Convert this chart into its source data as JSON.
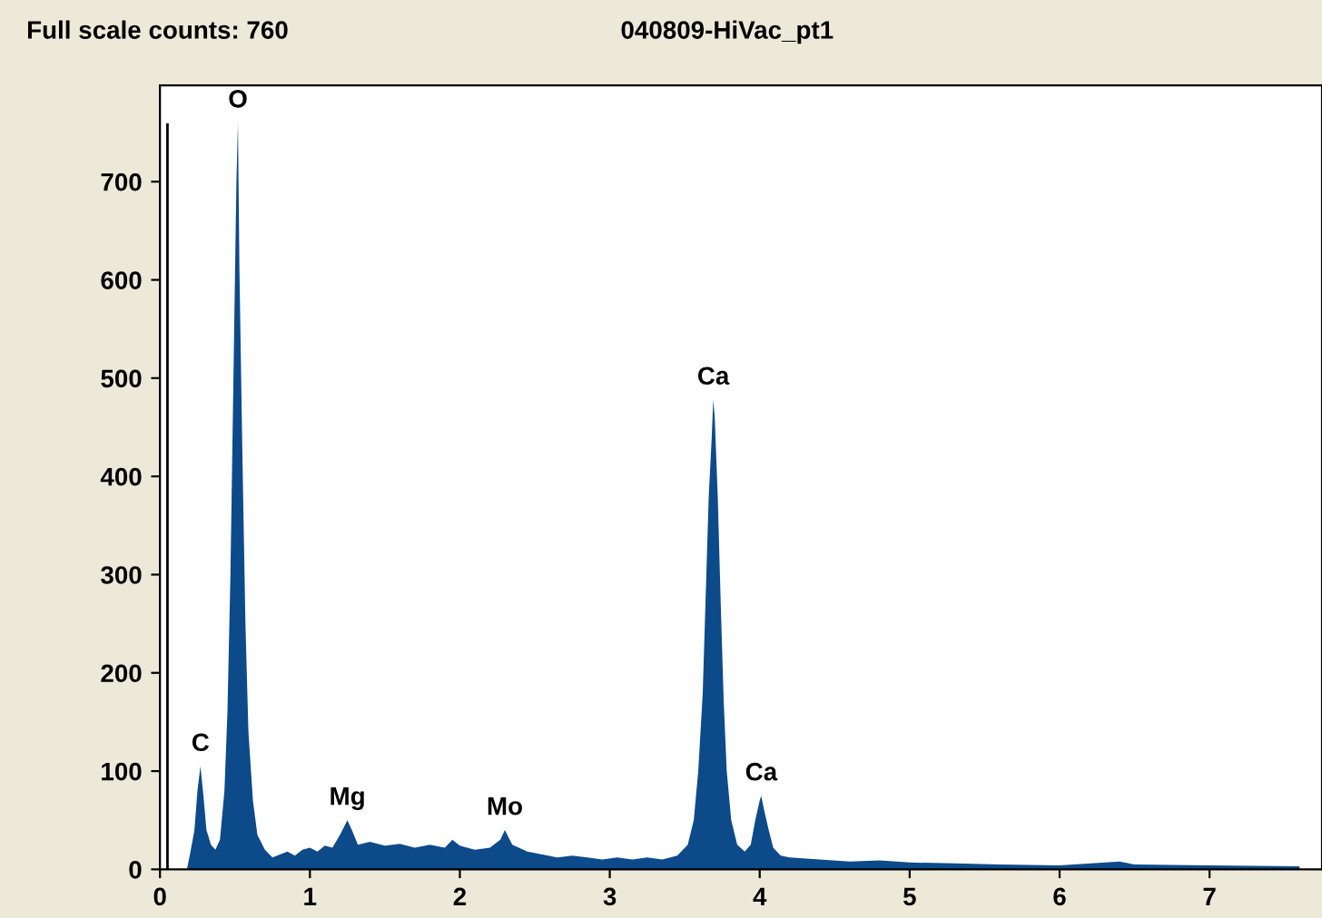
{
  "chart_data": {
    "type": "area",
    "title": "040809-HiVac_pt1",
    "subtitle": "Full scale counts: 760",
    "x": [
      0.18,
      0.2,
      0.23,
      0.25,
      0.27,
      0.29,
      0.31,
      0.34,
      0.37,
      0.4,
      0.43,
      0.45,
      0.47,
      0.49,
      0.51,
      0.52,
      0.53,
      0.55,
      0.57,
      0.59,
      0.62,
      0.65,
      0.7,
      0.75,
      0.8,
      0.85,
      0.9,
      0.95,
      1.0,
      1.05,
      1.1,
      1.15,
      1.2,
      1.25,
      1.28,
      1.32,
      1.4,
      1.5,
      1.6,
      1.7,
      1.8,
      1.9,
      1.95,
      2.0,
      2.1,
      2.2,
      2.27,
      2.3,
      2.35,
      2.45,
      2.55,
      2.65,
      2.75,
      2.85,
      2.95,
      3.05,
      3.15,
      3.25,
      3.35,
      3.45,
      3.52,
      3.56,
      3.59,
      3.62,
      3.64,
      3.66,
      3.68,
      3.69,
      3.7,
      3.72,
      3.74,
      3.76,
      3.78,
      3.81,
      3.85,
      3.9,
      3.94,
      3.97,
      4.0,
      4.01,
      4.03,
      4.06,
      4.09,
      4.14,
      4.2,
      4.4,
      4.6,
      4.8,
      5.0,
      5.3,
      5.6,
      6.0,
      6.4,
      6.5,
      7.0,
      7.6
    ],
    "series": [
      {
        "color": "#0d4a8a",
        "values": [
          0,
          15,
          40,
          80,
          105,
          75,
          40,
          25,
          20,
          30,
          80,
          160,
          300,
          500,
          700,
          760,
          610,
          420,
          250,
          140,
          70,
          35,
          20,
          12,
          15,
          18,
          14,
          20,
          22,
          18,
          24,
          22,
          35,
          50,
          40,
          25,
          28,
          24,
          26,
          22,
          25,
          22,
          30,
          24,
          20,
          22,
          30,
          40,
          25,
          18,
          15,
          12,
          14,
          12,
          10,
          12,
          10,
          12,
          10,
          14,
          25,
          50,
          100,
          180,
          280,
          380,
          440,
          478,
          460,
          380,
          270,
          170,
          100,
          50,
          25,
          18,
          25,
          50,
          70,
          75,
          60,
          40,
          22,
          14,
          12,
          10,
          8,
          9,
          7,
          6,
          5,
          4,
          8,
          5,
          4,
          3
        ]
      }
    ],
    "xlim": [
      0,
      7.75
    ],
    "ylim": [
      0,
      798
    ],
    "xticks": [
      0,
      1,
      2,
      3,
      4,
      5,
      6,
      7
    ],
    "yticks": [
      0,
      100,
      200,
      300,
      400,
      500,
      600,
      700
    ],
    "ref_lines": [
      {
        "axis": "x",
        "value": 0.05,
        "color": "#000000"
      }
    ],
    "annotations": [
      {
        "text": "C",
        "x": 0.27,
        "y": 105
      },
      {
        "text": "O",
        "x": 0.52,
        "y": 760
      },
      {
        "text": "Mg",
        "x": 1.25,
        "y": 50
      },
      {
        "text": "Mo",
        "x": 2.3,
        "y": 40
      },
      {
        "text": "Ca",
        "x": 3.69,
        "y": 478
      },
      {
        "text": "Ca",
        "x": 4.01,
        "y": 75
      }
    ],
    "grid": false,
    "legend": false
  }
}
